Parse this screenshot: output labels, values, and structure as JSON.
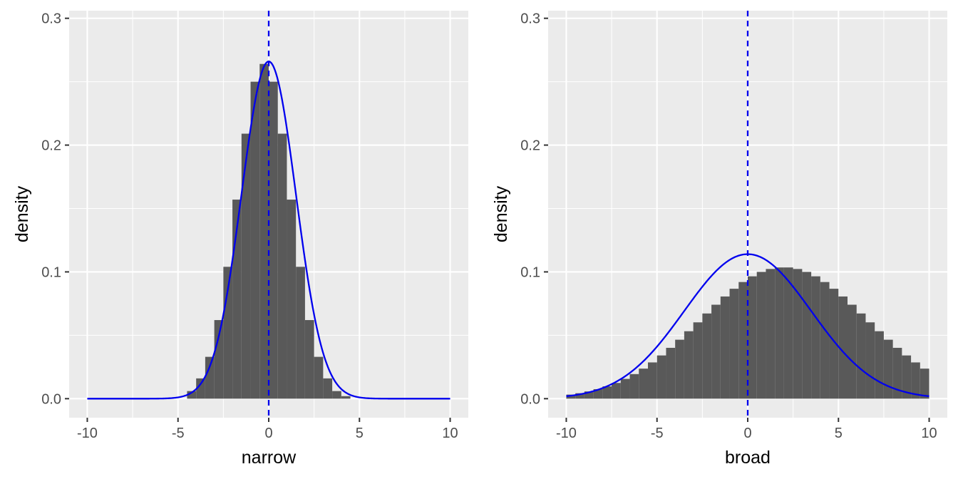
{
  "colors": {
    "panel": "#ebebeb",
    "grid": "#ffffff",
    "bar": "#595959",
    "curve": "#0000ee"
  },
  "chart_data": [
    {
      "type": "bar",
      "xlabel": "narrow",
      "ylabel": "density",
      "xlim": [
        -10,
        10
      ],
      "ylim": [
        0,
        0.3
      ],
      "x_ticks": [
        -10,
        -5,
        0,
        5,
        10
      ],
      "x_tick_labels": [
        "-10",
        "-5",
        "0",
        "5",
        "10"
      ],
      "y_ticks": [
        0,
        0.1,
        0.2,
        0.3
      ],
      "y_tick_labels": [
        "0.0",
        "0.1",
        "0.2",
        "0.3"
      ],
      "grid": true,
      "histogram": {
        "bin_edges": [
          -4.5,
          -4.0,
          -3.5,
          -3.0,
          -2.5,
          -2.0,
          -1.5,
          -1.0,
          -0.5,
          0.0,
          0.5,
          1.0,
          1.5,
          2.0,
          2.5,
          3.0,
          3.5,
          4.0,
          4.5
        ],
        "density": [
          0.006,
          0.016,
          0.033,
          0.062,
          0.104,
          0.157,
          0.209,
          0.25,
          0.264,
          0.25,
          0.209,
          0.157,
          0.104,
          0.062,
          0.033,
          0.016,
          0.006,
          0.002
        ]
      },
      "density_curve": {
        "distribution": "normal",
        "mean": 0,
        "sd": 1.5,
        "x_range": [
          -10,
          10
        ],
        "color": "#0000ee"
      },
      "vline": {
        "x": 0,
        "linetype": "dashed",
        "color": "#0000ee"
      }
    },
    {
      "type": "bar",
      "xlabel": "broad",
      "ylabel": "density",
      "xlim": [
        -10,
        10
      ],
      "ylim": [
        0,
        0.3
      ],
      "x_ticks": [
        -10,
        -5,
        0,
        5,
        10
      ],
      "x_tick_labels": [
        "-10",
        "-5",
        "0",
        "5",
        "10"
      ],
      "y_ticks": [
        0,
        0.1,
        0.2,
        0.3
      ],
      "y_tick_labels": [
        "0.0",
        "0.1",
        "0.2",
        "0.3"
      ],
      "grid": true,
      "histogram": {
        "bin_edges": [
          -10,
          -9.5,
          -9,
          -8.5,
          -8,
          -7.5,
          -7,
          -6.5,
          -6,
          -5.5,
          -5,
          -4.5,
          -4,
          -3.5,
          -3,
          -2.5,
          -2,
          -1.5,
          -1,
          -0.5,
          0,
          0.5,
          1,
          1.5,
          2,
          2.5,
          3,
          3.5,
          4,
          4.5,
          5,
          5.5,
          6,
          6.5,
          7,
          7.5,
          8,
          8.5,
          9,
          9.5,
          10
        ],
        "density": [
          0.0032,
          0.0043,
          0.0057,
          0.0075,
          0.0097,
          0.0124,
          0.0156,
          0.0194,
          0.0237,
          0.0286,
          0.0341,
          0.0401,
          0.0465,
          0.0532,
          0.0602,
          0.0672,
          0.0741,
          0.0806,
          0.0867,
          0.092,
          0.0965,
          0.1,
          0.1023,
          0.1035,
          0.1035,
          0.1023,
          0.1,
          0.0965,
          0.092,
          0.0867,
          0.0806,
          0.0741,
          0.0672,
          0.0602,
          0.0532,
          0.0465,
          0.0401,
          0.0341,
          0.0286,
          0.0237
        ],
        "note_peak_density": 0.114
      },
      "density_curve": {
        "distribution": "normal",
        "mean": 0,
        "sd": 3.5,
        "x_range": [
          -10,
          10
        ],
        "color": "#0000ee"
      },
      "vline": {
        "x": 0,
        "linetype": "dashed",
        "color": "#0000ee"
      }
    }
  ]
}
